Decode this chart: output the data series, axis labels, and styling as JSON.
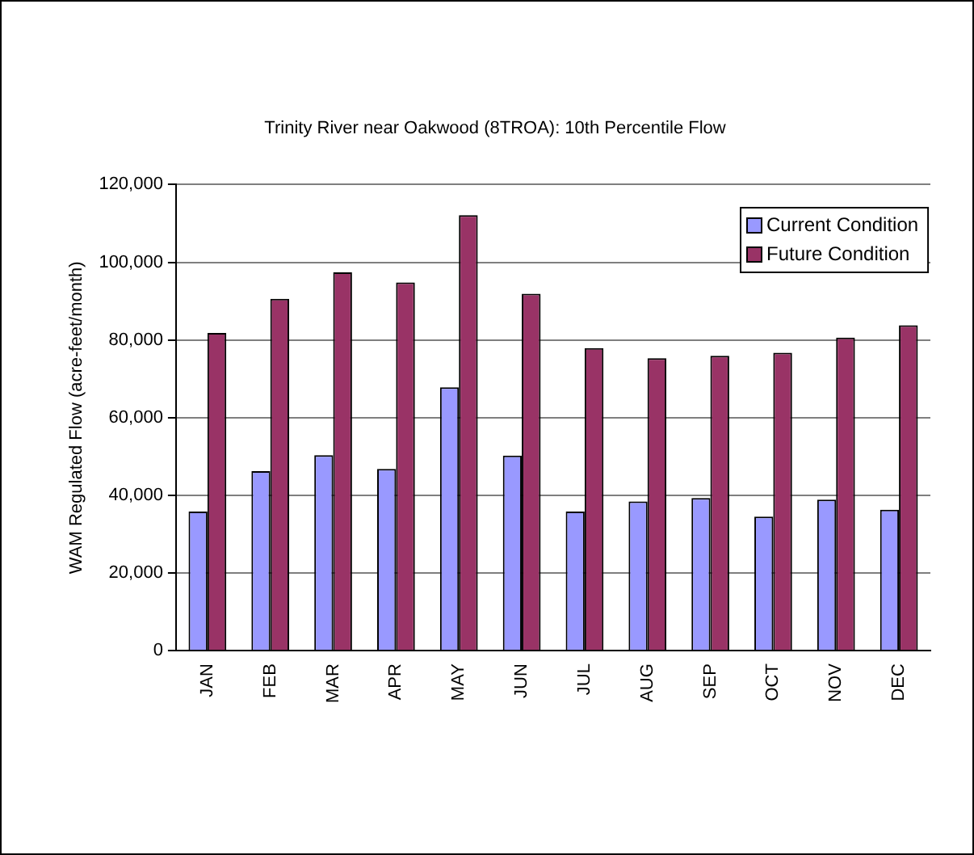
{
  "chart_data": {
    "type": "bar",
    "title": "Trinity River near Oakwood (8TROA): 10th Percentile Flow",
    "ylabel": "WAM Regulated Flow (acre-feet/month)",
    "categories": [
      "JAN",
      "FEB",
      "MAR",
      "APR",
      "MAY",
      "JUN",
      "JUL",
      "AUG",
      "SEP",
      "OCT",
      "NOV",
      "DEC"
    ],
    "series": [
      {
        "name": "Current Condition",
        "color": "#9999ff",
        "values": [
          35800,
          46200,
          50300,
          46800,
          67800,
          50200,
          35800,
          38400,
          39300,
          34500,
          38900,
          36300
        ]
      },
      {
        "name": "Future Condition",
        "color": "#993366",
        "values": [
          81800,
          90600,
          97400,
          94800,
          112100,
          91900,
          77900,
          75300,
          75900,
          76700,
          80600,
          83800
        ]
      }
    ],
    "ylim": [
      0,
      120000
    ],
    "yticks": [
      0,
      {
        "value": 20000,
        "label": "20,000"
      },
      {
        "value": 40000,
        "label": "40,000"
      },
      {
        "value": 60000,
        "label": "60,000"
      },
      {
        "value": 80000,
        "label": "80,000"
      },
      {
        "value": 100000,
        "label": "100,000"
      },
      {
        "value": 120000,
        "label": "120,000"
      }
    ],
    "grid": "y",
    "legend": "top right"
  }
}
